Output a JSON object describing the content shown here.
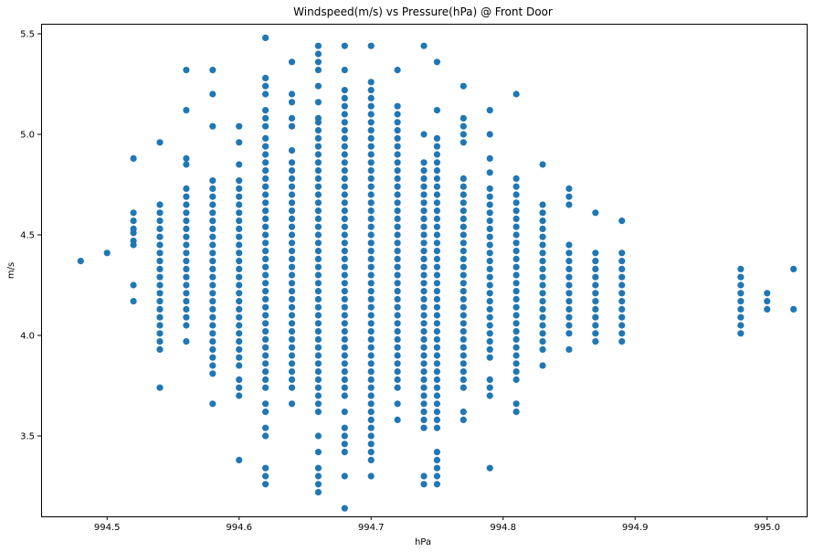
{
  "chart_data": {
    "type": "scatter",
    "title": "Windspeed(m/s) vs Pressure(hPa) @ Front Door",
    "xlabel": "hPa",
    "ylabel": "m/s",
    "xlim": [
      994.45,
      995.03
    ],
    "ylim": [
      3.1,
      5.55
    ],
    "xticks": [
      994.5,
      994.6,
      994.7,
      994.8,
      994.9,
      995.0
    ],
    "xtick_labels": [
      "994.5",
      "994.6",
      "994.7",
      "994.8",
      "994.9",
      "995.0"
    ],
    "yticks": [
      3.5,
      4.0,
      4.5,
      5.0,
      5.5
    ],
    "ytick_labels": [
      "3.5",
      "4.0",
      "4.5",
      "5.0",
      "5.5"
    ],
    "grid": false,
    "marker_color": "#1f77b4",
    "columns": [
      {
        "x": 994.48,
        "y": [
          4.37
        ]
      },
      {
        "x": 994.5,
        "y": [
          4.41
        ]
      },
      {
        "x": 994.52,
        "y": [
          4.17,
          4.25,
          4.45,
          4.47,
          4.51,
          4.53,
          4.57,
          4.61,
          4.88
        ]
      },
      {
        "x": 994.54,
        "ranges": [
          [
            3.93,
            4.65
          ]
        ],
        "y": [
          3.74,
          4.96
        ]
      },
      {
        "x": 994.56,
        "ranges": [
          [
            4.05,
            4.73
          ]
        ],
        "y": [
          3.97,
          4.85,
          4.88,
          5.12,
          5.32
        ]
      },
      {
        "x": 994.58,
        "ranges": [
          [
            3.81,
            4.77
          ]
        ],
        "y": [
          3.66,
          5.04,
          5.2,
          5.32
        ]
      },
      {
        "x": 994.6,
        "ranges": [
          [
            3.85,
            4.77
          ]
        ],
        "y": [
          3.38,
          3.7,
          3.74,
          3.78,
          4.85,
          4.96,
          5.04
        ]
      },
      {
        "x": 994.62,
        "ranges": [
          [
            3.74,
            5.0
          ]
        ],
        "y": [
          3.26,
          3.3,
          3.34,
          3.5,
          3.54,
          3.62,
          3.66,
          5.04,
          5.08,
          5.12,
          5.2,
          5.24,
          5.28,
          5.48
        ]
      },
      {
        "x": 994.64,
        "ranges": [
          [
            3.74,
            4.85
          ]
        ],
        "y": [
          3.66,
          4.92,
          5.04,
          5.08,
          5.16,
          5.2,
          5.36
        ]
      },
      {
        "x": 994.66,
        "ranges": [
          [
            3.62,
            5.04
          ]
        ],
        "y": [
          3.22,
          3.26,
          3.3,
          3.34,
          3.42,
          3.5,
          5.08,
          5.16,
          5.24,
          5.32,
          5.36,
          5.4,
          5.44
        ]
      },
      {
        "x": 994.68,
        "ranges": [
          [
            3.7,
            5.2
          ]
        ],
        "y": [
          3.14,
          3.3,
          3.42,
          3.46,
          3.5,
          3.54,
          3.62,
          5.32,
          5.44
        ]
      },
      {
        "x": 994.7,
        "ranges": [
          [
            3.46,
            5.24
          ]
        ],
        "y": [
          3.3,
          3.38,
          3.42,
          5.44
        ]
      },
      {
        "x": 994.72,
        "ranges": [
          [
            3.78,
            5.12
          ]
        ],
        "y": [
          3.58,
          3.66,
          3.74,
          5.32
        ]
      },
      {
        "x": 994.74,
        "ranges": [
          [
            3.54,
            4.88
          ]
        ],
        "y": [
          3.26,
          3.3,
          5.0,
          5.44
        ]
      },
      {
        "x": 994.75,
        "ranges": [
          [
            3.66,
            5.0
          ]
        ],
        "y": [
          3.26,
          3.3,
          3.34,
          3.38,
          3.42,
          3.54,
          3.58,
          3.62,
          5.12,
          5.36
        ]
      },
      {
        "x": 994.77,
        "ranges": [
          [
            3.74,
            4.77
          ]
        ],
        "y": [
          3.58,
          3.62,
          4.96,
          5.0,
          5.04,
          5.08,
          5.24
        ]
      },
      {
        "x": 994.79,
        "ranges": [
          [
            3.89,
            4.69
          ]
        ],
        "y": [
          3.34,
          3.7,
          3.74,
          3.78,
          4.73,
          4.81,
          4.88,
          5.0,
          5.12
        ]
      },
      {
        "x": 994.81,
        "ranges": [
          [
            3.78,
            4.77
          ]
        ],
        "y": [
          3.62,
          3.66,
          5.2
        ]
      },
      {
        "x": 994.83,
        "ranges": [
          [
            3.93,
            4.65
          ]
        ],
        "y": [
          3.85,
          4.85
        ]
      },
      {
        "x": 994.85,
        "ranges": [
          [
            4.01,
            4.45
          ]
        ],
        "y": [
          3.93,
          4.65,
          4.69,
          4.73
        ]
      },
      {
        "x": 994.87,
        "ranges": [
          [
            3.97,
            4.41
          ]
        ],
        "y": [
          4.61
        ]
      },
      {
        "x": 994.89,
        "ranges": [
          [
            3.97,
            4.41
          ]
        ],
        "y": [
          4.57
        ]
      },
      {
        "x": 994.98,
        "ranges": [
          [
            4.01,
            4.33
          ]
        ],
        "y": []
      },
      {
        "x": 995.0,
        "y": [
          4.13,
          4.17,
          4.21
        ]
      },
      {
        "x": 995.02,
        "y": [
          4.13,
          4.33
        ]
      }
    ],
    "range_step": 0.04
  }
}
